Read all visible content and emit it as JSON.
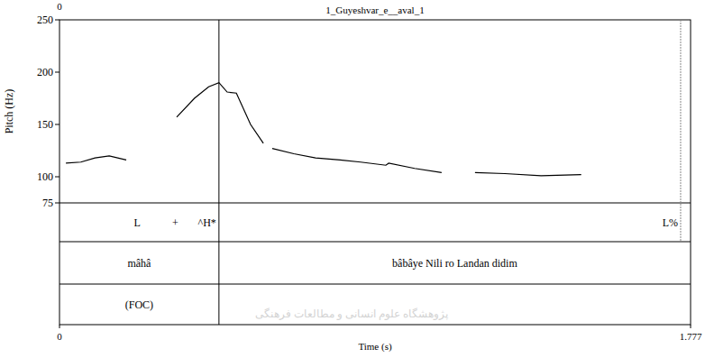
{
  "chart_data": {
    "type": "line",
    "title": "1_Guyeshvar_e__aval_1",
    "corner_label": "0",
    "y_label": "Pitch (Hz)",
    "x_label": "Time (s)",
    "xlim": [
      0,
      1.777
    ],
    "xticks": [
      0,
      1.777
    ],
    "ylim": [
      75,
      250
    ],
    "yticks": [
      75,
      100,
      150,
      200,
      250
    ],
    "color": "#000000",
    "x": [
      0.018,
      0.06,
      0.1,
      0.14,
      0.188,
      null,
      0.33,
      0.38,
      0.42,
      0.449,
      0.472,
      0.498,
      0.538,
      0.574,
      null,
      0.599,
      0.66,
      0.721,
      0.79,
      0.848,
      0.919,
      0.927,
      1.0,
      1.076,
      null,
      1.17,
      1.254,
      1.356,
      1.469
    ],
    "values": [
      113,
      114,
      118,
      120,
      116,
      null,
      157,
      175,
      186,
      190,
      181,
      180,
      150,
      132,
      null,
      127,
      122,
      118,
      116,
      114,
      111,
      113,
      108,
      104,
      null,
      104,
      103,
      101,
      102
    ],
    "tiers": [
      {
        "points": [
          {
            "time": 0.449,
            "text": "L + ^H*"
          },
          {
            "time": 1.749,
            "text": "L%"
          }
        ]
      },
      {
        "intervals": [
          {
            "start": 0,
            "end": 0.449,
            "text": "mâhâ"
          },
          {
            "start": 0.449,
            "end": 1.777,
            "text": "bâbâye Nili ro Landan didim"
          }
        ]
      },
      {
        "intervals": [
          {
            "start": 0,
            "end": 0.449,
            "text": "(FOC)"
          },
          {
            "start": 0.449,
            "end": 1.777,
            "text": ""
          }
        ]
      }
    ],
    "watermark": "پژوهشگاه علوم انسانی و مطالعات فرهنگی"
  }
}
